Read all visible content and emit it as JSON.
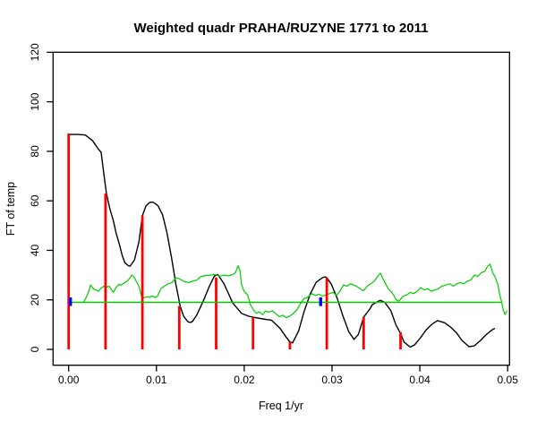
{
  "window": {
    "title": "R plot device"
  },
  "chart_data": {
    "type": "line",
    "title": "Weighted quadr PRAHA/RUZYNE 1771 to 2011",
    "xlabel": "Freq 1/yr",
    "ylabel": "FT of temp",
    "xlim": [
      0.0,
      0.05
    ],
    "ylim": [
      0,
      120
    ],
    "grid": false,
    "legend": "none",
    "x_ticks": [
      0.0,
      0.01,
      0.02,
      0.03,
      0.04,
      0.05
    ],
    "x_tick_labels": [
      "0.00",
      "0.01",
      "0.02",
      "0.03",
      "0.04",
      "0.05"
    ],
    "y_ticks": [
      0,
      20,
      40,
      60,
      80,
      100,
      120
    ],
    "y_tick_labels": [
      "0",
      "20",
      "40",
      "60",
      "80",
      "100",
      "120"
    ],
    "series": [
      {
        "name": "smoothed-ft-curve",
        "kind": "line",
        "color": "#000000",
        "width": 1.4,
        "points": [
          [
            0.0,
            86.8
          ],
          [
            0.001,
            86.8
          ],
          [
            0.0019,
            86.6
          ],
          [
            0.0027,
            84.4
          ],
          [
            0.0034,
            80.8
          ],
          [
            0.0037,
            79.6
          ],
          [
            0.004,
            71.2
          ],
          [
            0.0043,
            63.0
          ],
          [
            0.0047,
            56.7
          ],
          [
            0.0051,
            51.9
          ],
          [
            0.0054,
            47.0
          ],
          [
            0.0058,
            42.2
          ],
          [
            0.0061,
            38.0
          ],
          [
            0.0064,
            35.0
          ],
          [
            0.0068,
            33.8
          ],
          [
            0.007,
            33.6
          ],
          [
            0.0075,
            36.2
          ],
          [
            0.008,
            43.4
          ],
          [
            0.0084,
            54.0
          ],
          [
            0.0088,
            57.9
          ],
          [
            0.0092,
            59.3
          ],
          [
            0.0096,
            59.5
          ],
          [
            0.01,
            58.5
          ],
          [
            0.0102,
            57.9
          ],
          [
            0.0107,
            54.3
          ],
          [
            0.0112,
            47.0
          ],
          [
            0.0117,
            37.4
          ],
          [
            0.0122,
            26.5
          ],
          [
            0.0127,
            17.5
          ],
          [
            0.0131,
            13.3
          ],
          [
            0.0136,
            11.1
          ],
          [
            0.0139,
            10.9
          ],
          [
            0.0141,
            11.3
          ],
          [
            0.0146,
            13.9
          ],
          [
            0.0153,
            19.3
          ],
          [
            0.016,
            25.3
          ],
          [
            0.0166,
            29.6
          ],
          [
            0.017,
            30.2
          ],
          [
            0.0177,
            26.5
          ],
          [
            0.0187,
            18.7
          ],
          [
            0.0197,
            14.5
          ],
          [
            0.0205,
            13.4
          ],
          [
            0.021,
            13.0
          ],
          [
            0.0221,
            12.3
          ],
          [
            0.0231,
            11.8
          ],
          [
            0.0241,
            8.4
          ],
          [
            0.0248,
            4.8
          ],
          [
            0.0252,
            3.0
          ],
          [
            0.0255,
            2.6
          ],
          [
            0.0262,
            7.5
          ],
          [
            0.0268,
            15.1
          ],
          [
            0.0275,
            22.3
          ],
          [
            0.0282,
            27.1
          ],
          [
            0.0289,
            28.9
          ],
          [
            0.0292,
            29.3
          ],
          [
            0.0294,
            28.9
          ],
          [
            0.0299,
            26.5
          ],
          [
            0.0306,
            20.5
          ],
          [
            0.0312,
            13.9
          ],
          [
            0.0319,
            7.2
          ],
          [
            0.0325,
            4.0
          ],
          [
            0.033,
            6.0
          ],
          [
            0.0336,
            13.0
          ],
          [
            0.0343,
            16.3
          ],
          [
            0.0346,
            18.1
          ],
          [
            0.0353,
            19.5
          ],
          [
            0.0355,
            19.8
          ],
          [
            0.036,
            19.0
          ],
          [
            0.0367,
            15.6
          ],
          [
            0.0373,
            9.7
          ],
          [
            0.0378,
            6.5
          ],
          [
            0.0382,
            3.0
          ],
          [
            0.0389,
            0.9
          ],
          [
            0.0394,
            1.8
          ],
          [
            0.0401,
            4.8
          ],
          [
            0.0407,
            7.8
          ],
          [
            0.0414,
            10.2
          ],
          [
            0.042,
            11.6
          ],
          [
            0.0428,
            10.8
          ],
          [
            0.0435,
            9.0
          ],
          [
            0.0442,
            6.6
          ],
          [
            0.0448,
            3.6
          ],
          [
            0.0456,
            1.1
          ],
          [
            0.0462,
            1.4
          ],
          [
            0.0469,
            3.6
          ],
          [
            0.0475,
            5.8
          ],
          [
            0.0482,
            7.8
          ],
          [
            0.0485,
            8.4
          ]
        ]
      },
      {
        "name": "noise-spectrum-curve",
        "kind": "line",
        "color": "#00CC00",
        "width": 1.2,
        "points": [
          [
            0.0017,
            19.0
          ],
          [
            0.002,
            21.0
          ],
          [
            0.0023,
            23.5
          ],
          [
            0.0025,
            26.0
          ],
          [
            0.0028,
            24.5
          ],
          [
            0.0031,
            24.0
          ],
          [
            0.0034,
            23.5
          ],
          [
            0.0037,
            24.8
          ],
          [
            0.004,
            25.5
          ],
          [
            0.0043,
            25.0
          ],
          [
            0.0046,
            25.6
          ],
          [
            0.0049,
            24.0
          ],
          [
            0.0051,
            23.0
          ],
          [
            0.0054,
            25.0
          ],
          [
            0.0057,
            26.2
          ],
          [
            0.006,
            26.0
          ],
          [
            0.0064,
            27.0
          ],
          [
            0.0067,
            27.6
          ],
          [
            0.007,
            29.0
          ],
          [
            0.0072,
            30.0
          ],
          [
            0.0075,
            29.0
          ],
          [
            0.0077,
            27.5
          ],
          [
            0.008,
            25.5
          ],
          [
            0.0083,
            21.5
          ],
          [
            0.0086,
            20.8
          ],
          [
            0.0089,
            21.3
          ],
          [
            0.0092,
            21.0
          ],
          [
            0.0095,
            21.6
          ],
          [
            0.0098,
            21.0
          ],
          [
            0.0101,
            21.4
          ],
          [
            0.0105,
            24.5
          ],
          [
            0.0109,
            25.5
          ],
          [
            0.0113,
            26.5
          ],
          [
            0.0118,
            27.0
          ],
          [
            0.0122,
            29.0
          ],
          [
            0.0126,
            28.5
          ],
          [
            0.0131,
            27.5
          ],
          [
            0.0136,
            27.0
          ],
          [
            0.0141,
            27.5
          ],
          [
            0.0146,
            28.0
          ],
          [
            0.0151,
            29.5
          ],
          [
            0.0156,
            29.8
          ],
          [
            0.0161,
            30.0
          ],
          [
            0.0167,
            30.3
          ],
          [
            0.0172,
            29.5
          ],
          [
            0.0177,
            30.0
          ],
          [
            0.0182,
            29.7
          ],
          [
            0.0187,
            30.2
          ],
          [
            0.019,
            31.0
          ],
          [
            0.0193,
            33.8
          ],
          [
            0.0195,
            32.0
          ],
          [
            0.0197,
            26.0
          ],
          [
            0.02,
            23.4
          ],
          [
            0.0204,
            22.0
          ],
          [
            0.0207,
            18.0
          ],
          [
            0.0211,
            15.7
          ],
          [
            0.0214,
            14.5
          ],
          [
            0.0217,
            15.2
          ],
          [
            0.0221,
            14.0
          ],
          [
            0.0224,
            15.5
          ],
          [
            0.0228,
            15.0
          ],
          [
            0.0232,
            15.6
          ],
          [
            0.0236,
            14.4
          ],
          [
            0.024,
            13.2
          ],
          [
            0.0244,
            13.8
          ],
          [
            0.0248,
            12.8
          ],
          [
            0.0252,
            13.5
          ],
          [
            0.0256,
            14.5
          ],
          [
            0.026,
            16.0
          ],
          [
            0.0264,
            18.5
          ],
          [
            0.0268,
            20.5
          ],
          [
            0.0272,
            21.0
          ],
          [
            0.0277,
            22.5
          ],
          [
            0.0281,
            21.8
          ],
          [
            0.0285,
            22.3
          ],
          [
            0.0289,
            21.5
          ],
          [
            0.0293,
            22.0
          ],
          [
            0.0297,
            22.5
          ],
          [
            0.0301,
            23.0
          ],
          [
            0.0305,
            21.8
          ],
          [
            0.0309,
            23.5
          ],
          [
            0.0313,
            26.0
          ],
          [
            0.0317,
            25.5
          ],
          [
            0.0321,
            26.5
          ],
          [
            0.0326,
            25.8
          ],
          [
            0.033,
            25.0
          ],
          [
            0.0334,
            24.0
          ],
          [
            0.0336,
            23.7
          ],
          [
            0.034,
            25.5
          ],
          [
            0.0344,
            26.5
          ],
          [
            0.0348,
            27.5
          ],
          [
            0.0352,
            29.5
          ],
          [
            0.0355,
            30.8
          ],
          [
            0.0358,
            28.5
          ],
          [
            0.0361,
            26.5
          ],
          [
            0.0364,
            24.5
          ],
          [
            0.0367,
            23.5
          ],
          [
            0.037,
            22.0
          ],
          [
            0.0373,
            20.0
          ],
          [
            0.0376,
            19.5
          ],
          [
            0.0381,
            21.5
          ],
          [
            0.0385,
            22.0
          ],
          [
            0.0389,
            23.0
          ],
          [
            0.0393,
            22.5
          ],
          [
            0.0397,
            23.5
          ],
          [
            0.0401,
            25.0
          ],
          [
            0.0405,
            24.0
          ],
          [
            0.0409,
            24.5
          ],
          [
            0.0413,
            23.5
          ],
          [
            0.0417,
            24.0
          ],
          [
            0.0421,
            24.5
          ],
          [
            0.0425,
            25.5
          ],
          [
            0.043,
            26.0
          ],
          [
            0.0434,
            26.5
          ],
          [
            0.0438,
            25.5
          ],
          [
            0.0442,
            26.5
          ],
          [
            0.0446,
            27.0
          ],
          [
            0.045,
            26.5
          ],
          [
            0.0454,
            27.5
          ],
          [
            0.0458,
            28.0
          ],
          [
            0.0462,
            30.0
          ],
          [
            0.0466,
            29.5
          ],
          [
            0.047,
            31.0
          ],
          [
            0.0474,
            31.5
          ],
          [
            0.0477,
            33.5
          ],
          [
            0.048,
            34.4
          ],
          [
            0.0483,
            31.0
          ],
          [
            0.0486,
            29.0
          ],
          [
            0.0489,
            26.0
          ],
          [
            0.0491,
            22.0
          ],
          [
            0.0493,
            19.5
          ],
          [
            0.0495,
            16.0
          ],
          [
            0.0497,
            14.0
          ],
          [
            0.0499,
            15.5
          ]
        ]
      },
      {
        "name": "harmonic-amplitude-lines",
        "kind": "vlines",
        "color": "#FF0000",
        "width": 2.8,
        "base": 0,
        "lines": [
          {
            "x": 0.0,
            "height": 87.2
          },
          {
            "x": 0.0042,
            "height": 63.0
          },
          {
            "x": 0.0084,
            "height": 54.0
          },
          {
            "x": 0.0126,
            "height": 17.5
          },
          {
            "x": 0.0168,
            "height": 29.0
          },
          {
            "x": 0.021,
            "height": 13.0
          },
          {
            "x": 0.0252,
            "height": 3.0
          },
          {
            "x": 0.0294,
            "height": 29.0
          },
          {
            "x": 0.0336,
            "height": 13.0
          },
          {
            "x": 0.0378,
            "height": 7.0
          }
        ]
      },
      {
        "name": "significance-level-line",
        "kind": "hline",
        "color": "#00CC00",
        "width": 1.6,
        "y": 19.0,
        "x1": 0.0002,
        "x2": 0.0493
      },
      {
        "name": "frequency-markers",
        "kind": "vsegments",
        "color": "#0000EE",
        "width": 3.4,
        "segments": [
          {
            "x": 0.0002,
            "y1": 17.5,
            "y2": 21.0
          },
          {
            "x": 0.0287,
            "y1": 17.5,
            "y2": 21.0
          }
        ]
      }
    ]
  }
}
